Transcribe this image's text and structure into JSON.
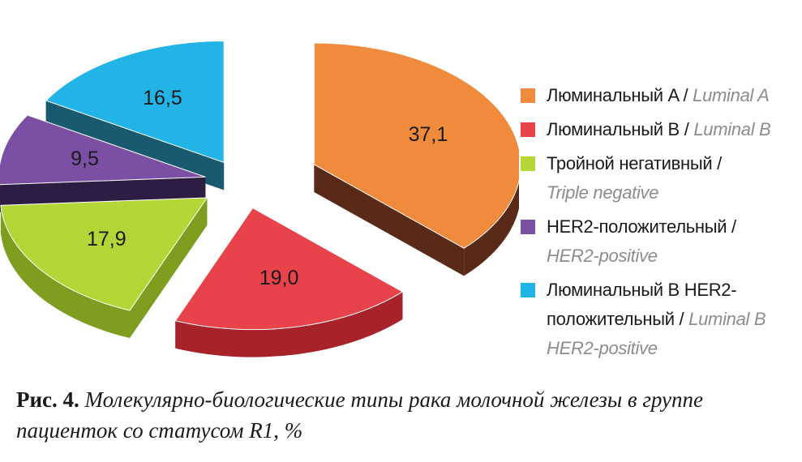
{
  "chart_data": {
    "type": "pie",
    "slices": [
      {
        "label_ru": "Люминальный A",
        "label_en": "Luminal A",
        "value": 37.1,
        "value_label": "37,1",
        "color": "#f08a3c",
        "side_color": "#5a2a18"
      },
      {
        "label_ru": "Люминальный B",
        "label_en": "Luminal B",
        "value": 19.0,
        "value_label": "19,0",
        "color": "#e8424a",
        "side_color": "#a8222a"
      },
      {
        "label_ru": "Тройной негативный",
        "label_en": "Triple negative",
        "value": 17.9,
        "value_label": "17,9",
        "color": "#b4d636",
        "side_color": "#7f9e1f"
      },
      {
        "label_ru": "HER2-положительный",
        "label_en": "HER2-positive",
        "value": 9.5,
        "value_label": "9,5",
        "color": "#7b4fa3",
        "side_color": "#2e1d42"
      },
      {
        "label_ru": "Люминальный B HER2-положительный",
        "label_en": "Luminal B HER2-positive",
        "value": 16.5,
        "value_label": "16,5",
        "color": "#22b4e6",
        "side_color": "#1a5a70"
      }
    ],
    "legend_position": "right"
  },
  "legend": {
    "items": [
      {
        "ru": "Люминальный A /",
        "en": "Luminal A"
      },
      {
        "ru": "Люминальный B /",
        "en": "Luminal B"
      },
      {
        "ru": "Тройной негативный /",
        "en": "Triple negative"
      },
      {
        "ru": "HER2-положительный /",
        "en": "HER2-positive"
      },
      {
        "ru": "Люминальный B HER2-положительный /",
        "en": "Luminal B HER2-positive"
      }
    ]
  },
  "caption": {
    "label": "Рис. 4.",
    "text": "Молекулярно-биологические типы рака молочной железы в группе пациенток со статусом R1, %"
  }
}
